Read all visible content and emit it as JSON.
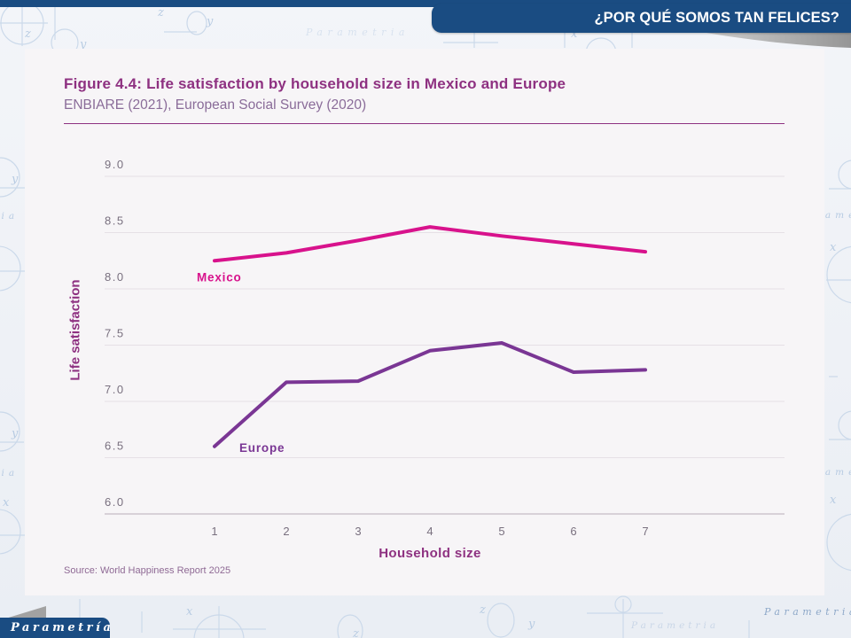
{
  "header": {
    "title": "¿POR QUÉ SOMOS TAN FELICES?",
    "bar_color": "#1A4C82"
  },
  "footer_logo": {
    "text": "Parametría",
    "color": "#1A4C82"
  },
  "background": {
    "watermark": "Parametria"
  },
  "chart_data": {
    "type": "line",
    "title": "Figure 4.4: Life satisfaction by household size in Mexico and Europe",
    "subtitle": "ENBIARE (2021), European Social Survey (2020)",
    "source": "Source: World Happiness Report 2025",
    "x": [
      1,
      2,
      3,
      4,
      5,
      6,
      7
    ],
    "xlabel": "Household size",
    "ylabel": "Life satisfaction",
    "ylim": [
      6.0,
      9.0
    ],
    "yticks": [
      6.0,
      6.5,
      7.0,
      7.5,
      8.0,
      8.5,
      9.0
    ],
    "grid": true,
    "legend_position": "inline-labels",
    "title_color": "#8E3181",
    "tick_color": "#79707F",
    "series": [
      {
        "name": "Mexico",
        "color": "#D8128C",
        "values": [
          8.25,
          8.32,
          8.43,
          8.55,
          8.47,
          8.4,
          8.33
        ]
      },
      {
        "name": "Europe",
        "color": "#7A3694",
        "values": [
          6.6,
          7.17,
          7.18,
          7.45,
          7.52,
          7.26,
          7.28
        ]
      }
    ]
  }
}
